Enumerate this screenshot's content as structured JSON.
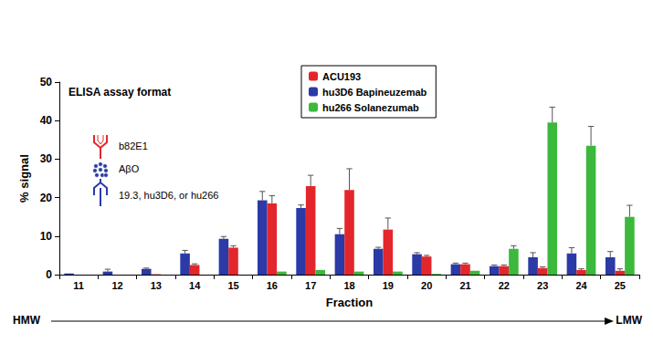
{
  "chart_data": {
    "type": "bar",
    "x_label": "Fraction",
    "y_label": "% signal",
    "categories": [
      "11",
      "12",
      "13",
      "14",
      "15",
      "16",
      "17",
      "18",
      "19",
      "20",
      "21",
      "22",
      "23",
      "24",
      "25"
    ],
    "series": [
      {
        "name": "hu3D6 Bapineuzemab",
        "color": "#2b3aa6",
        "values": [
          0.3,
          0.8,
          1.5,
          5.5,
          9.3,
          19.3,
          17.3,
          10.5,
          6.7,
          5.3,
          2.7,
          2.2,
          4.5,
          5.5,
          4.5
        ],
        "errors": [
          null,
          0.6,
          0.2,
          0.8,
          0.6,
          2.3,
          0.8,
          1.5,
          0.4,
          0.4,
          0.3,
          0.3,
          1.2,
          1.5,
          1.5
        ]
      },
      {
        "name": "ACU193",
        "color": "#e3262b",
        "values": [
          0,
          0,
          0.1,
          2.5,
          7,
          18.5,
          23,
          22,
          11.7,
          4.7,
          2.7,
          2.2,
          1.7,
          1.2,
          1
        ],
        "errors": [
          null,
          null,
          null,
          0.3,
          0.5,
          2,
          2.8,
          5.5,
          3,
          0.3,
          0.3,
          0.3,
          0.3,
          0.3,
          0.5
        ]
      },
      {
        "name": "hu266 Solanezumab",
        "color": "#3cb83c",
        "values": [
          0,
          0,
          0,
          0,
          0,
          0.8,
          1.2,
          0.8,
          0.8,
          0.2,
          1,
          6.7,
          39.5,
          33.5,
          15
        ],
        "errors": [
          null,
          null,
          null,
          null,
          null,
          null,
          null,
          null,
          null,
          null,
          null,
          0.8,
          4,
          5,
          3
        ]
      }
    ],
    "ylim": [
      0,
      50
    ],
    "yticks": [
      0,
      10,
      20,
      30,
      40,
      50
    ],
    "grid": false,
    "legend": "top",
    "annotations": [
      "ELISA assay format",
      "b82E1",
      "AβO",
      "19.3, hu3D6, or hu266",
      "HMW",
      "LMW"
    ]
  }
}
